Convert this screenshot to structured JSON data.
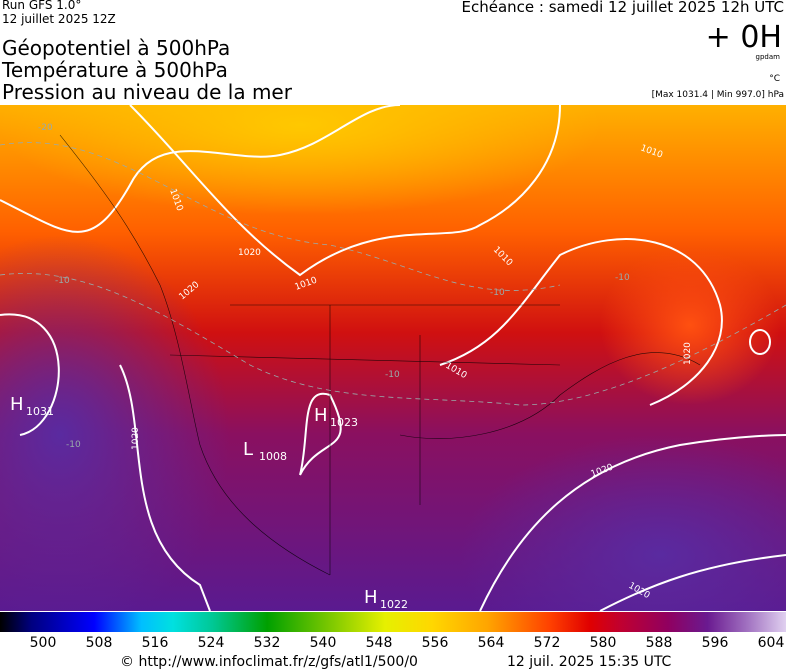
{
  "header": {
    "run": "Run GFS 1.0°",
    "run_date": "12 juillet 2025 12Z",
    "valid": "Echéance : samedi 12 juillet 2025 12h UTC",
    "titles": [
      "Géopotentiel à 500hPa",
      "Température à 500hPa",
      "Pression au niveau de la mer"
    ],
    "lead": "+ 0H",
    "unit_geo": "gpdam",
    "unit_temp": "°C",
    "pressure_range": "[Max 1031.4 | Min 997.0] hPa"
  },
  "map": {
    "centers": [
      {
        "letter": "H",
        "value": "1031"
      },
      {
        "letter": "H",
        "value": "1023"
      },
      {
        "letter": "L",
        "value": "1008"
      },
      {
        "letter": "H",
        "value": "1022"
      }
    ],
    "isobar_labels": [
      "1010",
      "1010",
      "1010",
      "1010",
      "1010",
      "1020",
      "1020",
      "1020",
      "1020",
      "1020",
      "1020"
    ],
    "temp_labels": [
      "-20",
      "-10",
      "-10",
      "-10",
      "-10",
      "-10"
    ]
  },
  "colorbar": {
    "labels": [
      "500",
      "508",
      "516",
      "524",
      "532",
      "540",
      "548",
      "556",
      "564",
      "572",
      "580",
      "588",
      "596",
      "604"
    ]
  },
  "footer": {
    "source": "© http://www.infoclimat.fr/z/gfs/atl1/500/0",
    "generated": "12 juil. 2025 15:35 UTC"
  }
}
